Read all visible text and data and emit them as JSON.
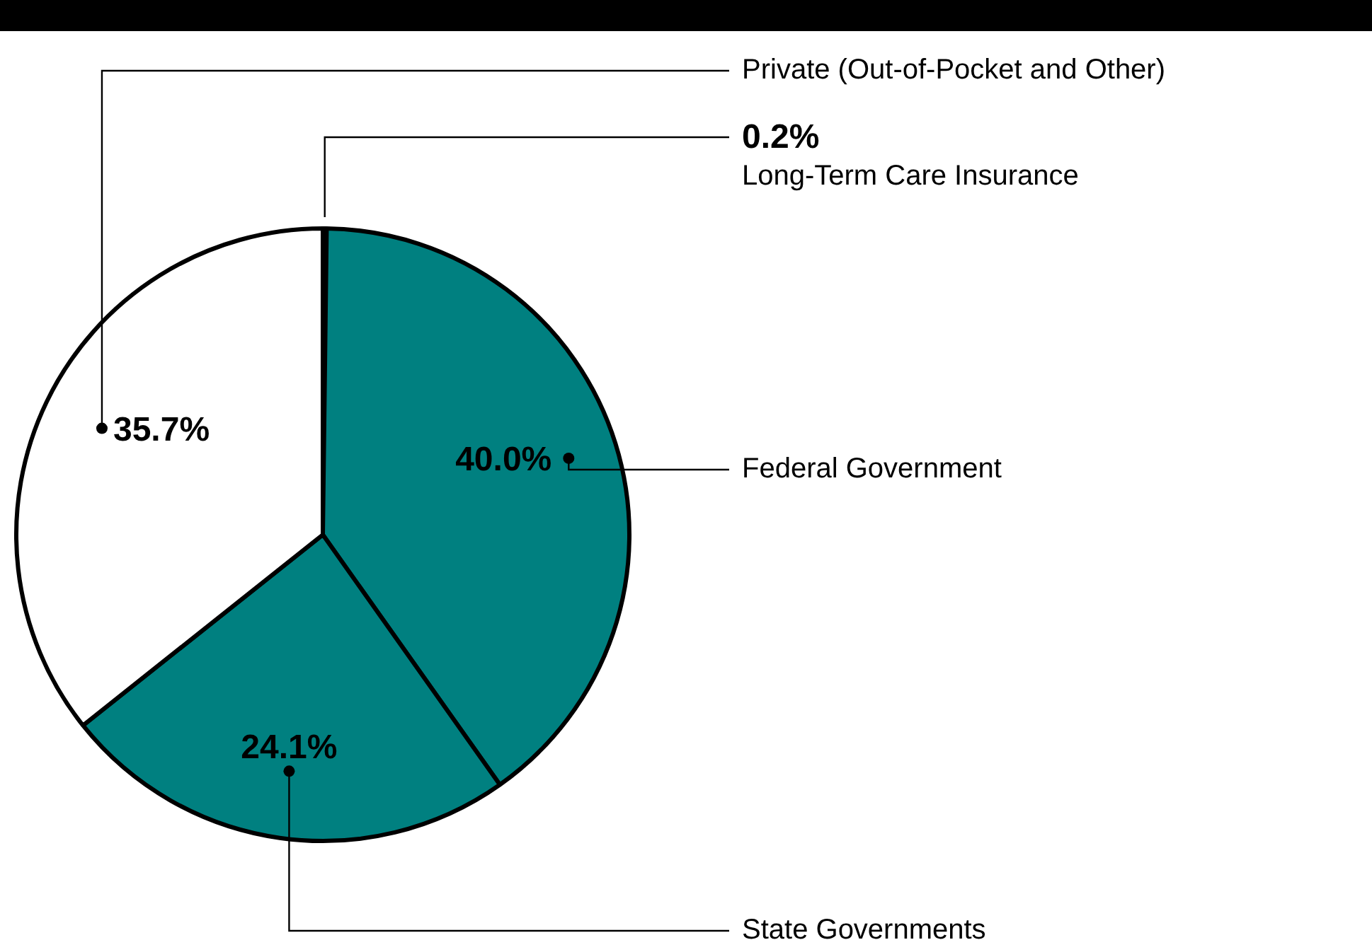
{
  "chart_data": {
    "type": "pie",
    "categories": [
      "Long-Term Care Insurance",
      "Federal Government",
      "State Governments",
      "Private (Out-of-Pocket and Other)"
    ],
    "values": [
      0.2,
      40.0,
      24.1,
      35.7
    ],
    "colors": [
      "#ffffff",
      "#008080",
      "#008080",
      "#ffffff"
    ],
    "value_labels": [
      "0.2%",
      "40.0%",
      "24.1%",
      "35.7%"
    ],
    "legend": false
  }
}
